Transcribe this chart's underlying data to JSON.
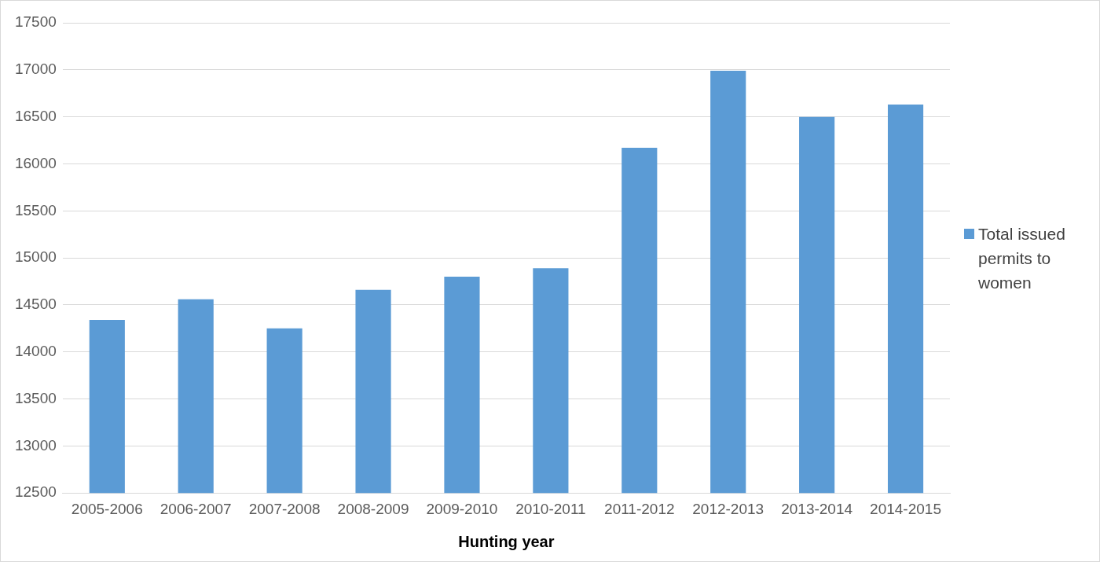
{
  "chart_data": {
    "type": "bar",
    "xlabel": "Hunting year",
    "categories": [
      "2005-2006",
      "2006-2007",
      "2007-2008",
      "2008-2009",
      "2009-2010",
      "2010-2011",
      "2011-2012",
      "2012-2013",
      "2013-2014",
      "2014-2015"
    ],
    "series": [
      {
        "name": "Total issued permits to women",
        "color": "#5b9bd5",
        "values": [
          14340,
          14560,
          14250,
          14660,
          14800,
          14890,
          16170,
          16990,
          16500,
          16630
        ]
      }
    ],
    "ylim": [
      12500,
      17500
    ],
    "yticks": [
      12500,
      13000,
      13500,
      14000,
      14500,
      15000,
      15500,
      16000,
      16500,
      17000,
      17500
    ],
    "grid": "y",
    "legend": "right"
  }
}
